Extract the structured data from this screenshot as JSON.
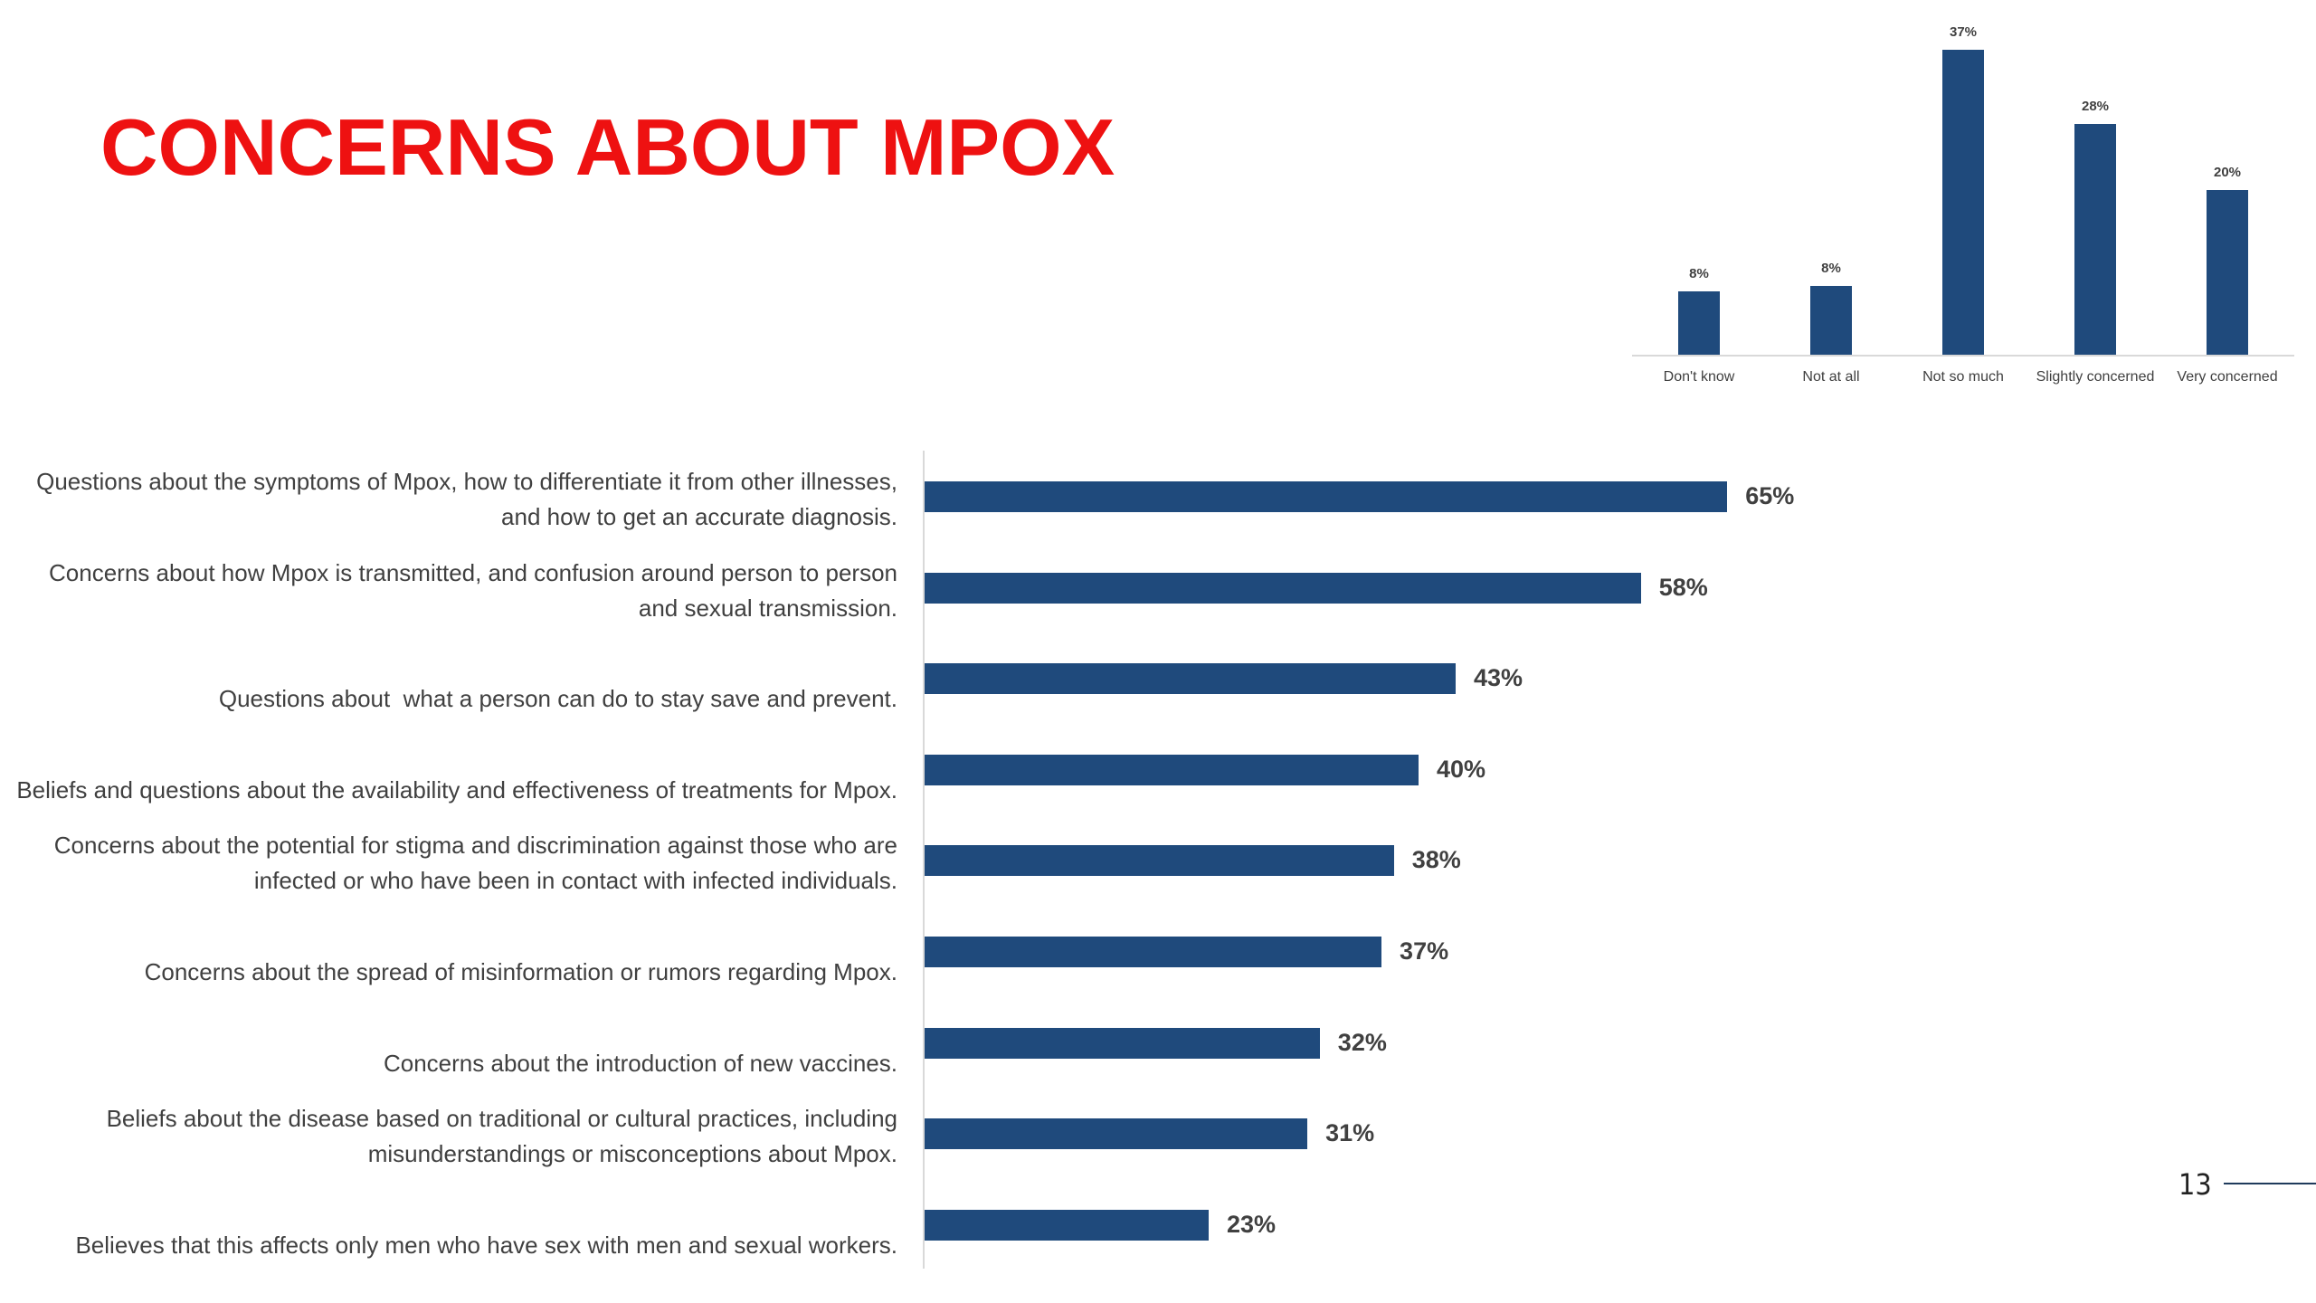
{
  "slide": {
    "title": "CONCERNS ABOUT MPOX",
    "page_number": "13"
  },
  "chart_data": [
    {
      "type": "bar",
      "orientation": "vertical",
      "color": "#1f4a7c",
      "categories": [
        "Don't know",
        "Not at all",
        "Not so much",
        "Slightly concerned",
        "Very concerned"
      ],
      "values": [
        7.7,
        8.4,
        37,
        28,
        20
      ],
      "value_labels": [
        "8%",
        "8%",
        "37%",
        "28%",
        "20%"
      ]
    },
    {
      "type": "bar",
      "orientation": "horizontal",
      "color": "#1f4a7c",
      "categories": [
        "Questions about the symptoms of Mpox, how to differentiate it from other illnesses, and how to get an accurate diagnosis.",
        "Concerns about how Mpox is transmitted, and confusion around person to person and sexual transmission.",
        "Questions about  what a person can do to stay save and prevent.",
        "Beliefs and questions about the availability and effectiveness of treatments for Mpox.",
        "Concerns about the potential for stigma and discrimination against those who are infected or who have been in contact with infected individuals.",
        "Concerns about the spread of misinformation or rumors regarding Mpox.",
        "Concerns about the introduction of new vaccines.",
        "Beliefs about the disease based on traditional or cultural practices, including misunderstandings or misconceptions about Mpox.",
        "Believes that this affects only men who have sex with men and sexual workers."
      ],
      "values": [
        65,
        58,
        43,
        40,
        38,
        37,
        32,
        31,
        23
      ],
      "value_labels": [
        "65%",
        "58%",
        "43%",
        "40%",
        "38%",
        "37%",
        "32%",
        "31%",
        "23%"
      ]
    }
  ]
}
